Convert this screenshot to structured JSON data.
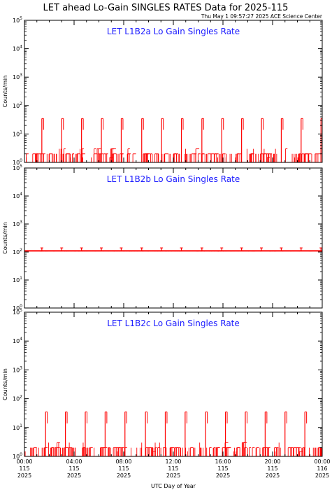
{
  "page": {
    "title": "LET ahead Lo-Gain SINGLES RATES Data for 2025-115",
    "timestamp": "Thu May  1 09:57:27 2025 ACE Science Center"
  },
  "colors": {
    "data": "#ff0000",
    "panel_title": "#1a1aff",
    "axes": "#000000",
    "background": "#ffffff"
  },
  "chart_data": [
    {
      "type": "line",
      "title": "LET L1B2a Lo Gain Singles Rate",
      "ylabel": "Counts/min",
      "yscale": "log",
      "ylim": [
        1,
        100000
      ],
      "xlim": [
        0,
        24
      ],
      "y_ticks": [
        {
          "mant": "10",
          "exp": "0"
        },
        {
          "mant": "10",
          "exp": "1"
        },
        {
          "mant": "10",
          "exp": "2"
        },
        {
          "mant": "10",
          "exp": "3"
        },
        {
          "mant": "10",
          "exp": "4"
        },
        {
          "mant": "10",
          "exp": "5"
        }
      ],
      "series": [
        {
          "baseline": 1.0,
          "noise_levels": [
            1,
            2
          ],
          "spike_peak": 35,
          "spike_hours": [
            1.4,
            3.0,
            4.6,
            6.2,
            7.8,
            9.45,
            11.05,
            12.65,
            14.3,
            15.9,
            17.5,
            19.1,
            20.7,
            22.3,
            23.9
          ]
        }
      ]
    },
    {
      "type": "line",
      "title": "LET L1B2b Lo Gain Singles Rate",
      "ylabel": "Counts/min",
      "yscale": "log",
      "ylim": [
        1,
        100000
      ],
      "xlim": [
        0,
        24
      ],
      "y_ticks": [
        {
          "mant": "10",
          "exp": "0"
        },
        {
          "mant": "10",
          "exp": "1"
        },
        {
          "mant": "10",
          "exp": "2"
        },
        {
          "mant": "10",
          "exp": "3"
        },
        {
          "mant": "10",
          "exp": "4"
        },
        {
          "mant": "10",
          "exp": "5"
        }
      ],
      "series": [
        {
          "baseline": 110,
          "noise_levels": [
            105,
            115
          ],
          "spike_peak": 140,
          "spike_hours": [
            1.4,
            3.0,
            4.6,
            6.2,
            7.8,
            9.45,
            11.05,
            12.65,
            14.3,
            15.9,
            17.5,
            19.1,
            20.7,
            22.3,
            23.9
          ]
        }
      ]
    },
    {
      "type": "line",
      "title": "LET L1B2c Lo Gain Singles Rate",
      "ylabel": "Counts/min",
      "yscale": "log",
      "ylim": [
        1,
        100000
      ],
      "xlim": [
        0,
        24
      ],
      "y_ticks": [
        {
          "mant": "10",
          "exp": "0"
        },
        {
          "mant": "10",
          "exp": "1"
        },
        {
          "mant": "10",
          "exp": "2"
        },
        {
          "mant": "10",
          "exp": "3"
        },
        {
          "mant": "10",
          "exp": "4"
        },
        {
          "mant": "10",
          "exp": "5"
        }
      ],
      "series": [
        {
          "baseline": 1.0,
          "noise_levels": [
            1,
            2
          ],
          "spike_peak": 35,
          "spike_hours": [
            1.7,
            3.3,
            4.9,
            6.5,
            8.1,
            9.75,
            11.35,
            12.95,
            14.6,
            16.2,
            17.8,
            19.4,
            21.0,
            22.6
          ]
        }
      ]
    }
  ],
  "x_axis": {
    "label": "UTC Day of Year",
    "ticks": [
      {
        "hour": 0,
        "time": "00:00",
        "doy": "115",
        "year": "2025"
      },
      {
        "hour": 4,
        "time": "04:00",
        "doy": "115",
        "year": "2025"
      },
      {
        "hour": 8,
        "time": "08:00",
        "doy": "115",
        "year": "2025"
      },
      {
        "hour": 12,
        "time": "12:00",
        "doy": "115",
        "year": "2025"
      },
      {
        "hour": 16,
        "time": "16:00",
        "doy": "115",
        "year": "2025"
      },
      {
        "hour": 20,
        "time": "20:00",
        "doy": "115",
        "year": "2025"
      },
      {
        "hour": 24,
        "time": "00:00",
        "doy": "116",
        "year": "2025"
      }
    ]
  }
}
